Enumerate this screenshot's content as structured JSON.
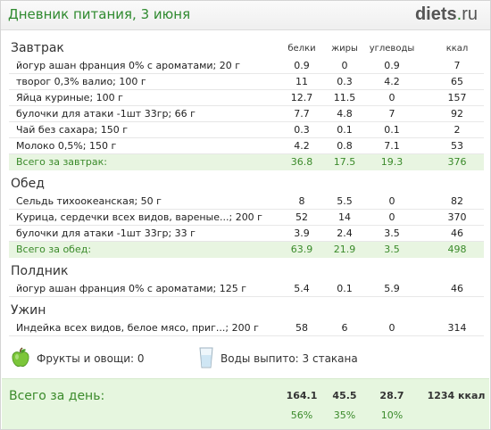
{
  "header": {
    "title": "Дневник питания, 3 июня",
    "logo_main": "diets",
    "logo_dot": ".",
    "logo_tld": "ru"
  },
  "columns": {
    "protein": "белки",
    "fat": "жиры",
    "carbs": "углеводы",
    "kcal": "ккал"
  },
  "sections": [
    {
      "name": "Завтрак",
      "items": [
        {
          "name": "йогур ашан франция 0% с ароматами; 20 г",
          "protein": "0.9",
          "fat": "0",
          "carbs": "0.9",
          "kcal": "7"
        },
        {
          "name": "творог 0,3% валио; 100 г",
          "protein": "11",
          "fat": "0.3",
          "carbs": "4.2",
          "kcal": "65"
        },
        {
          "name": "Яйца куриные; 100 г",
          "protein": "12.7",
          "fat": "11.5",
          "carbs": "0",
          "kcal": "157"
        },
        {
          "name": "булочки для атаки -1шт 33гр; 66 г",
          "protein": "7.7",
          "fat": "4.8",
          "carbs": "7",
          "kcal": "92"
        },
        {
          "name": "Чай без сахара; 150 г",
          "protein": "0.3",
          "fat": "0.1",
          "carbs": "0.1",
          "kcal": "2"
        },
        {
          "name": "Молоко 0,5%; 150 г",
          "protein": "4.2",
          "fat": "0.8",
          "carbs": "7.1",
          "kcal": "53"
        }
      ],
      "total": {
        "label": "Всего за завтрак:",
        "protein": "36.8",
        "fat": "17.5",
        "carbs": "19.3",
        "kcal": "376"
      }
    },
    {
      "name": "Обед",
      "items": [
        {
          "name": "Сельдь тихоокеанская; 50 г",
          "protein": "8",
          "fat": "5.5",
          "carbs": "0",
          "kcal": "82"
        },
        {
          "name": "Курица, сердечки всех видов, вареные...; 200 г",
          "protein": "52",
          "fat": "14",
          "carbs": "0",
          "kcal": "370"
        },
        {
          "name": "булочки для атаки -1шт 33гр; 33 г",
          "protein": "3.9",
          "fat": "2.4",
          "carbs": "3.5",
          "kcal": "46"
        }
      ],
      "total": {
        "label": "Всего за обед:",
        "protein": "63.9",
        "fat": "21.9",
        "carbs": "3.5",
        "kcal": "498"
      }
    },
    {
      "name": "Полдник",
      "items": [
        {
          "name": "йогур ашан франция 0% с ароматами; 125 г",
          "protein": "5.4",
          "fat": "0.1",
          "carbs": "5.9",
          "kcal": "46"
        }
      ]
    },
    {
      "name": "Ужин",
      "items": [
        {
          "name": "Индейка всех видов, белое мясо, приг...; 200 г",
          "protein": "58",
          "fat": "6",
          "carbs": "0",
          "kcal": "314"
        }
      ]
    }
  ],
  "extras": {
    "fruits_label": "Фрукты и овощи: 0",
    "water_label": "Воды выпито: 3 стакана",
    "fruit_icon": "green-apple-icon",
    "water_icon": "water-glass-icon"
  },
  "day_total": {
    "label": "Всего за день:",
    "protein": "164.1",
    "fat": "45.5",
    "carbs": "28.7",
    "kcal": "1234 ккал",
    "protein_pct": "56%",
    "fat_pct": "35%",
    "carbs_pct": "10%"
  },
  "colors": {
    "accent_green": "#3a8a2a",
    "total_row_bg": "#e8f5e1"
  }
}
